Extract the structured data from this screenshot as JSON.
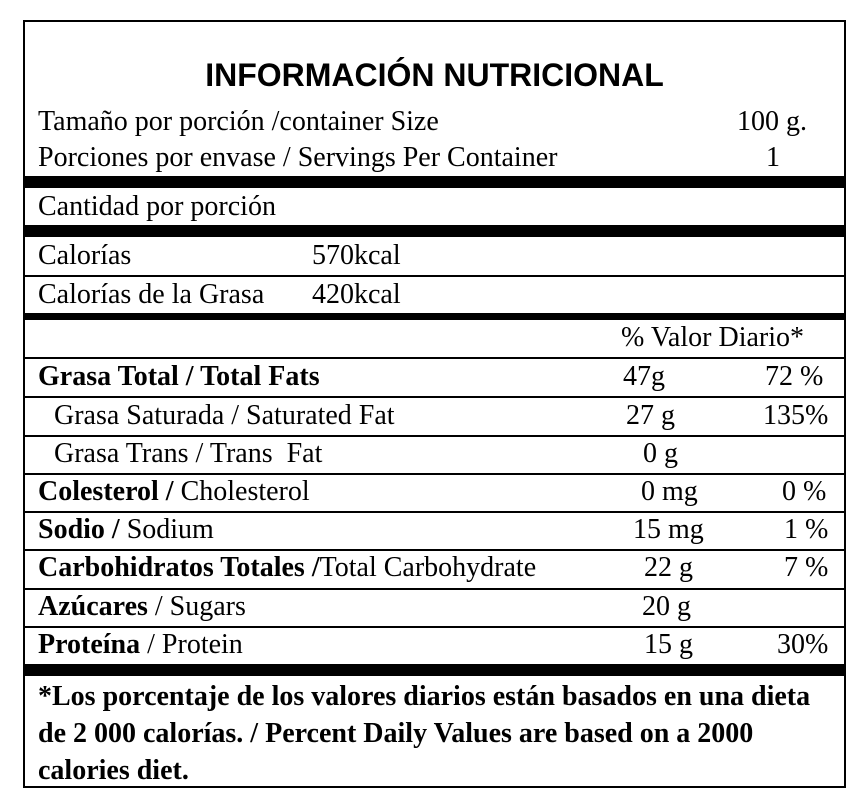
{
  "title": "INFORMACIÓN NUTRICIONAL",
  "serving": {
    "size_label": "Tamaño por porción /container Size",
    "size_value": "100 g.",
    "servings_label": "Porciones por envase / Servings Per Container",
    "servings_value": "1"
  },
  "amount_per_serving": "Cantidad por porción",
  "calories": {
    "label": "Calorías",
    "value": "570kcal",
    "fat_label": "Calorías de la Grasa",
    "fat_value": "420kcal"
  },
  "daily_value_header": "% Valor Diario*",
  "nutrients": [
    {
      "bold": "Grasa Total / Total Fats",
      "regular": "",
      "amount": "47g",
      "dv": "72 %"
    },
    {
      "bold": "",
      "regular": "Grasa Saturada / Saturated Fat",
      "amount": "27 g",
      "dv": "135%"
    },
    {
      "bold": "",
      "regular": "Grasa Trans / Trans  Fat",
      "amount": "0 g",
      "dv": ""
    },
    {
      "bold": "Colesterol /",
      "regular": " Cholesterol",
      "amount": "0 mg",
      "dv": "0 %"
    },
    {
      "bold": "Sodio /",
      "regular": " Sodium",
      "amount": "15 mg",
      "dv": "1 %"
    },
    {
      "bold": "Carbohidratos Totales /",
      "regular": "Total Carbohydrate",
      "amount": "22 g",
      "dv": "7 %"
    },
    {
      "bold": "Azúcares",
      "regular": " / Sugars",
      "amount": "20 g",
      "dv": ""
    },
    {
      "bold": "Proteína",
      "regular": " / Protein",
      "amount": "15 g",
      "dv": "30%"
    }
  ],
  "footnote": "*Los porcentaje de los valores diarios están basados en una dieta de 2 000 calorías. / Percent Daily Values are based on a 2000 calories diet."
}
